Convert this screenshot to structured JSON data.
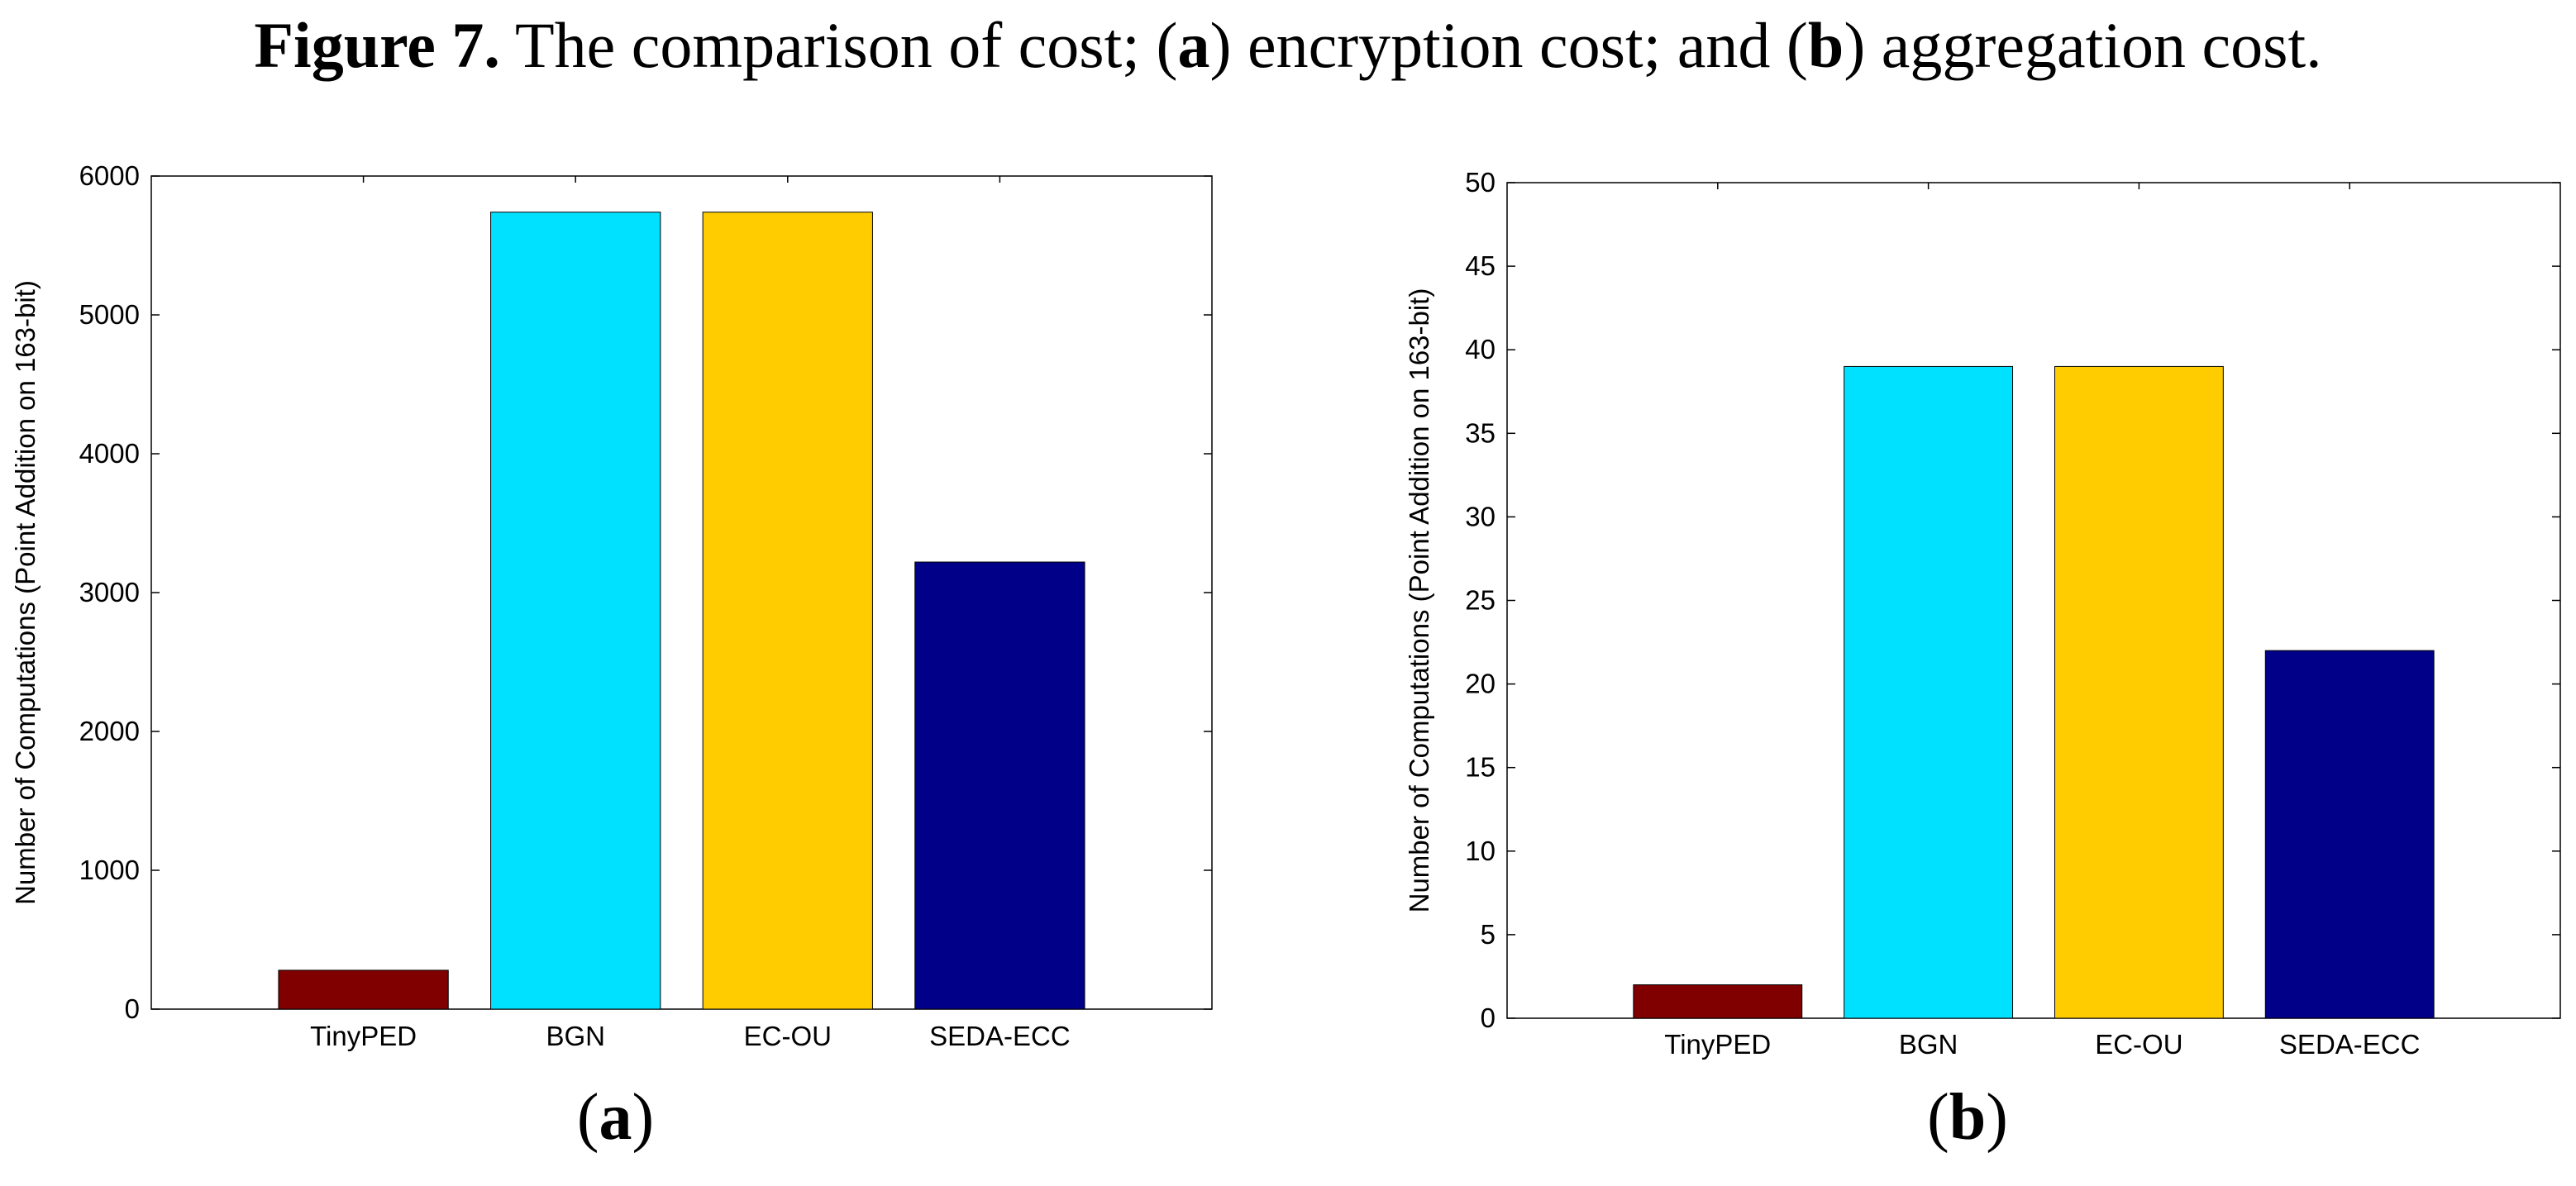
{
  "caption": {
    "figure": "Figure 7.",
    "text1": " The comparison of cost; (",
    "a": "a",
    "text2": ") encryption cost; and (",
    "b": "b",
    "text3": ") aggregation cost."
  },
  "chart_data": [
    {
      "type": "bar",
      "panel_label": "(a)",
      "title": "encryption cost",
      "categories": [
        "TinyPED",
        "BGN",
        "EC-OU",
        "SEDA-ECC"
      ],
      "values": [
        280,
        5740,
        5740,
        3220
      ],
      "colors": [
        "#800000",
        "#00e0ff",
        "#ffcc00",
        "#000088"
      ],
      "xlabel": "",
      "ylabel": "Number of Computations (Point Addition on 163-bit)",
      "ylim": [
        0,
        6000
      ],
      "yticks": [
        0,
        1000,
        2000,
        3000,
        4000,
        5000,
        6000
      ],
      "grid": false
    },
    {
      "type": "bar",
      "panel_label": "(b)",
      "title": "aggregation cost",
      "categories": [
        "TinyPED",
        "BGN",
        "EC-OU",
        "SEDA-ECC"
      ],
      "values": [
        2,
        39,
        39,
        22
      ],
      "colors": [
        "#800000",
        "#00e0ff",
        "#ffcc00",
        "#000088"
      ],
      "xlabel": "",
      "ylabel": "Number of Computations (Point Addition on 163-bit)",
      "ylim": [
        0,
        50
      ],
      "yticks": [
        0,
        5,
        10,
        15,
        20,
        25,
        30,
        35,
        40,
        45,
        50
      ],
      "grid": false
    }
  ]
}
